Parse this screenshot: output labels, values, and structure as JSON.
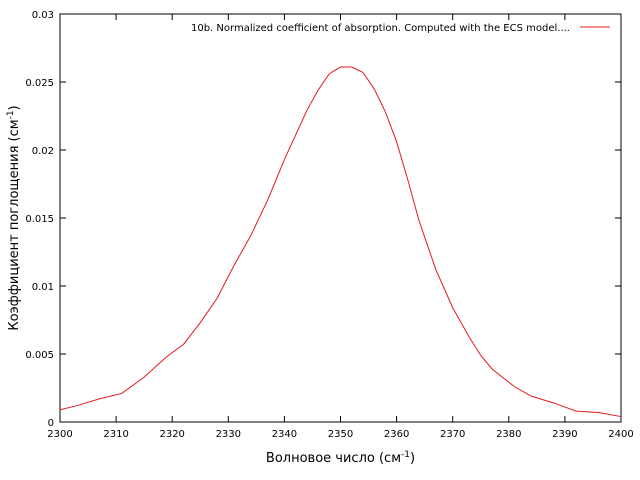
{
  "chart_data": {
    "type": "line",
    "title": "",
    "xlabel_main": "Волновое число (см",
    "xlabel_sup": "-1",
    "xlabel_tail": ")",
    "ylabel_main": "Коэффициент поглощения (см",
    "ylabel_sup": "-1",
    "ylabel_tail": ")",
    "xlim": [
      2300,
      2400
    ],
    "ylim": [
      0,
      0.03
    ],
    "xticks": [
      2300,
      2310,
      2320,
      2330,
      2340,
      2350,
      2360,
      2370,
      2380,
      2390,
      2400
    ],
    "yticks": [
      0,
      0.005,
      0.01,
      0.015,
      0.02,
      0.025,
      0.03
    ],
    "ytick_labels": [
      "0",
      "0.005",
      "0.01",
      "0.015",
      "0.02",
      "0.025",
      "0.03"
    ],
    "grid": false,
    "legend_position": "top-right",
    "series": [
      {
        "name": "10b. Normalized coefficient of absorption. Computed with the ECS model....",
        "color": "#e41a1c",
        "x": [
          2300,
          2303,
          2307,
          2311,
          2315,
          2319,
          2322,
          2325,
          2328,
          2331,
          2334,
          2337,
          2340,
          2342,
          2344,
          2346,
          2348,
          2350,
          2351,
          2352,
          2353,
          2354,
          2356,
          2358,
          2360,
          2362,
          2364,
          2367,
          2370,
          2373,
          2375,
          2377,
          2381,
          2384,
          2388,
          2392,
          2396,
          2400
        ],
        "y": [
          0.0009,
          0.0012,
          0.0017,
          0.0021,
          0.0033,
          0.0048,
          0.0057,
          0.0073,
          0.0091,
          0.0115,
          0.0137,
          0.0163,
          0.0193,
          0.0211,
          0.0229,
          0.0244,
          0.0256,
          0.0261,
          0.0261,
          0.0261,
          0.0259,
          0.0257,
          0.0245,
          0.0228,
          0.0206,
          0.0178,
          0.0148,
          0.0112,
          0.0084,
          0.0062,
          0.0049,
          0.0039,
          0.0026,
          0.0019,
          0.0014,
          0.0008,
          0.0007,
          0.0004
        ]
      }
    ]
  }
}
